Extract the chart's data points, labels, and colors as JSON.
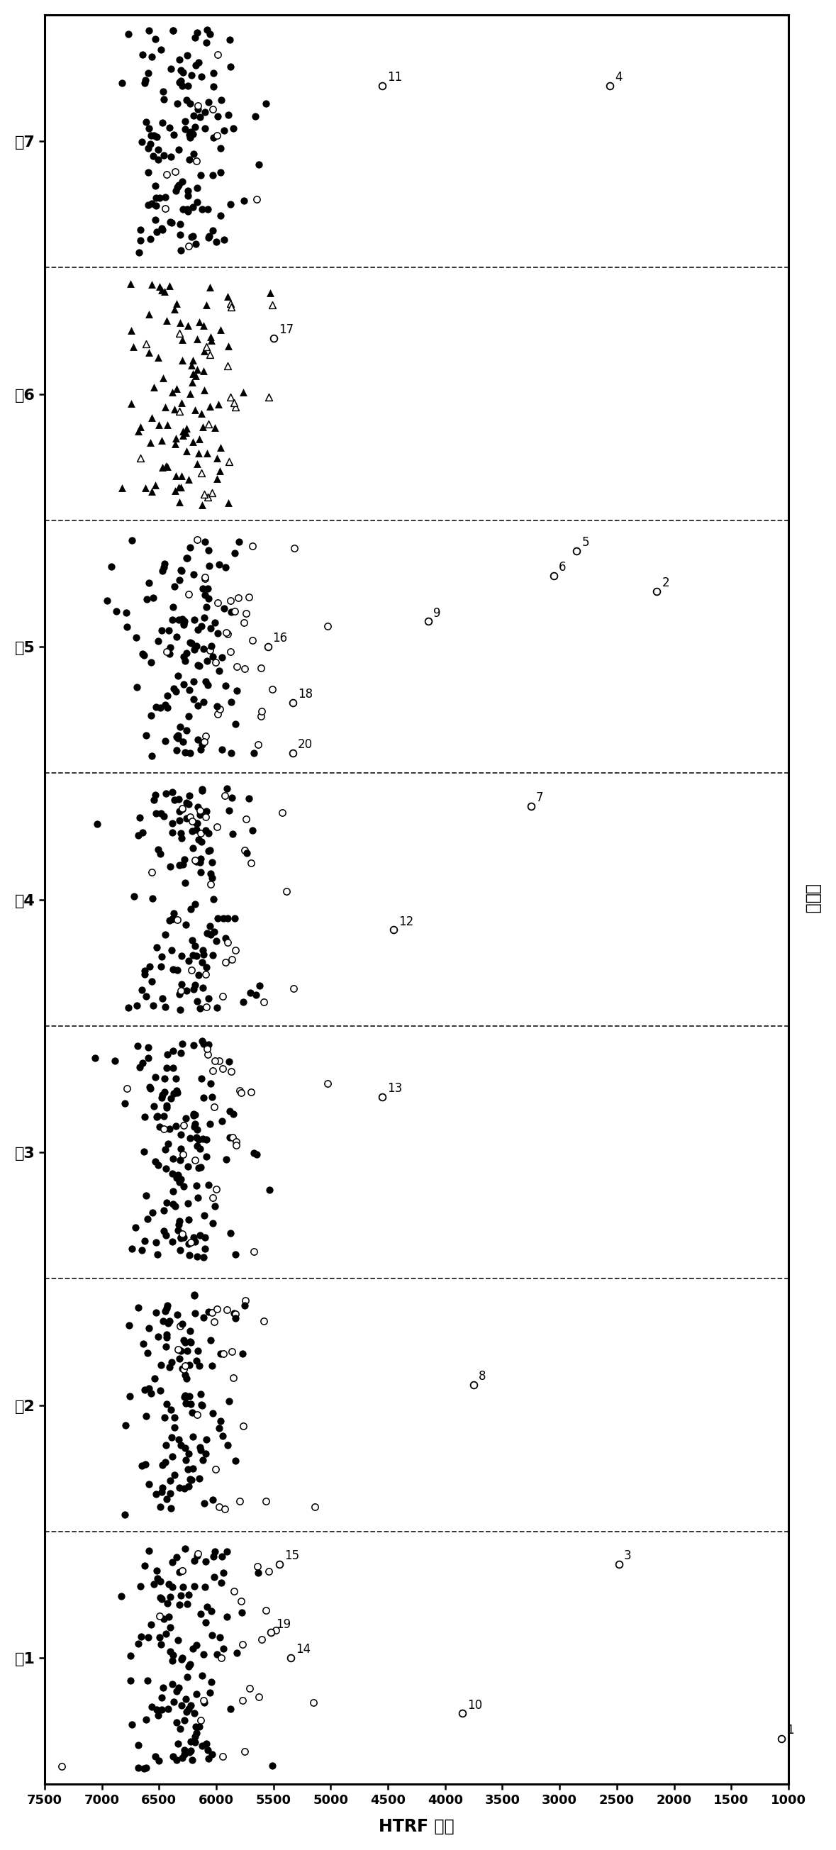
{
  "xlabel": "HTRF 比例",
  "ylabel": "化合物",
  "xlim_left": 7500,
  "xlim_right": 1000,
  "xticks": [
    7500,
    7000,
    6500,
    6000,
    5500,
    5000,
    4500,
    4000,
    3500,
    3000,
    2500,
    2000,
    1500,
    1000
  ],
  "panel_labels": [
    "板1",
    "板2",
    "板3",
    "板4",
    "板5",
    "板6",
    "板7"
  ],
  "n_panels": 7,
  "point_size_filled": 55,
  "point_size_open": 45,
  "labeled_points": [
    {
      "label": "1",
      "x": 1060,
      "panel": 0.18
    },
    {
      "label": "2",
      "x": 2150,
      "panel": 4.72
    },
    {
      "label": "3",
      "x": 2480,
      "panel": 0.87
    },
    {
      "label": "4",
      "x": 2560,
      "panel": 6.72
    },
    {
      "label": "5",
      "x": 2850,
      "panel": 4.88
    },
    {
      "label": "6",
      "x": 3050,
      "panel": 4.78
    },
    {
      "label": "7",
      "x": 3250,
      "panel": 3.87
    },
    {
      "label": "8",
      "x": 3750,
      "panel": 1.58
    },
    {
      "label": "9",
      "x": 4150,
      "panel": 4.6
    },
    {
      "label": "10",
      "x": 3850,
      "panel": 0.28
    },
    {
      "label": "11",
      "x": 4550,
      "panel": 6.72
    },
    {
      "label": "12",
      "x": 4450,
      "panel": 3.38
    },
    {
      "label": "13",
      "x": 4550,
      "panel": 2.72
    },
    {
      "label": "14",
      "x": 5350,
      "panel": 0.5
    },
    {
      "label": "15",
      "x": 5450,
      "panel": 0.87
    },
    {
      "label": "16",
      "x": 5550,
      "panel": 4.5
    },
    {
      "label": "17",
      "x": 5500,
      "panel": 5.72
    },
    {
      "label": "18",
      "x": 5330,
      "panel": 4.28
    },
    {
      "label": "19",
      "x": 5520,
      "panel": 0.6
    },
    {
      "label": "20",
      "x": 5330,
      "panel": 4.08
    }
  ],
  "panel_configs": [
    {
      "n_filled": 120,
      "n_open": 20,
      "filled_mean": 6280,
      "filled_std": 220,
      "open_mean": 5950,
      "open_std": 280,
      "open_spread": 400
    },
    {
      "n_filled": 110,
      "n_open": 22,
      "filled_mean": 6300,
      "filled_std": 230,
      "open_mean": 5980,
      "open_std": 260,
      "open_spread": 380
    },
    {
      "n_filled": 125,
      "n_open": 25,
      "filled_mean": 6270,
      "filled_std": 215,
      "open_mean": 5920,
      "open_std": 290,
      "open_spread": 420
    },
    {
      "n_filled": 115,
      "n_open": 28,
      "filled_mean": 6250,
      "filled_std": 235,
      "open_mean": 5900,
      "open_std": 300,
      "open_spread": 410
    },
    {
      "n_filled": 105,
      "n_open": 32,
      "filled_mean": 6290,
      "filled_std": 240,
      "open_mean": 5880,
      "open_std": 310,
      "open_spread": 430
    },
    {
      "n_filled": 85,
      "n_open": 20,
      "filled_mean": 6310,
      "filled_std": 245,
      "open_mean": 6000,
      "open_std": 270,
      "open_spread": 370
    },
    {
      "n_filled": 120,
      "n_open": 10,
      "filled_mean": 6330,
      "filled_std": 210,
      "open_mean": 6050,
      "open_std": 250,
      "open_spread": 350
    }
  ]
}
